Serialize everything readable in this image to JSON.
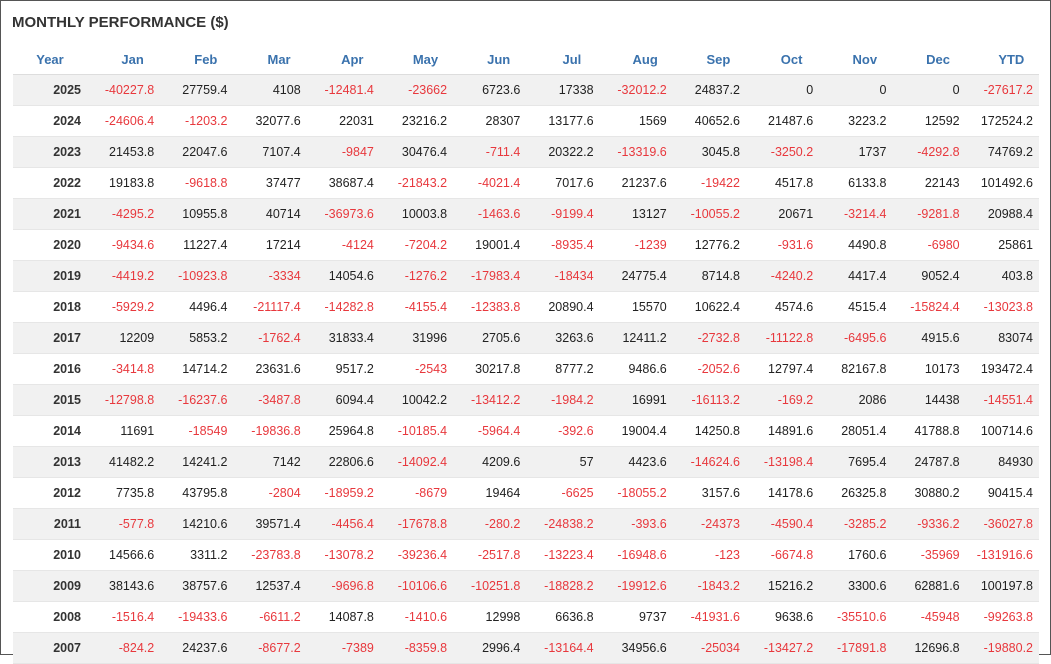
{
  "title": "MONTHLY PERFORMANCE ($)",
  "table": {
    "columns": [
      "Year",
      "Jan",
      "Feb",
      "Mar",
      "Apr",
      "May",
      "Jun",
      "Jul",
      "Aug",
      "Sep",
      "Oct",
      "Nov",
      "Dec",
      "YTD"
    ],
    "rows": [
      [
        2025,
        -40227.8,
        27759.4,
        4108,
        -12481.4,
        -23662,
        6723.6,
        17338,
        -32012.2,
        24837.2,
        0,
        0,
        0,
        -27617.2
      ],
      [
        2024,
        -24606.4,
        -1203.2,
        32077.6,
        22031,
        23216.2,
        28307,
        13177.6,
        1569,
        40652.6,
        21487.6,
        3223.2,
        12592,
        172524.2
      ],
      [
        2023,
        21453.8,
        22047.6,
        7107.4,
        -9847,
        30476.4,
        -711.4,
        20322.2,
        -13319.6,
        3045.8,
        -3250.2,
        1737,
        -4292.8,
        74769.2
      ],
      [
        2022,
        19183.8,
        -9618.8,
        37477,
        38687.4,
        -21843.2,
        -4021.4,
        7017.6,
        21237.6,
        -19422,
        4517.8,
        6133.8,
        22143,
        101492.6
      ],
      [
        2021,
        -4295.2,
        10955.8,
        40714,
        -36973.6,
        10003.8,
        -1463.6,
        -9199.4,
        13127,
        -10055.2,
        20671,
        -3214.4,
        -9281.8,
        20988.4
      ],
      [
        2020,
        -9434.6,
        11227.4,
        17214,
        -4124,
        -7204.2,
        19001.4,
        -8935.4,
        -1239,
        12776.2,
        -931.6,
        4490.8,
        -6980,
        25861
      ],
      [
        2019,
        -4419.2,
        -10923.8,
        -3334,
        14054.6,
        -1276.2,
        -17983.4,
        -18434,
        24775.4,
        8714.8,
        -4240.2,
        4417.4,
        9052.4,
        403.8
      ],
      [
        2018,
        -5929.2,
        4496.4,
        -21117.4,
        -14282.8,
        -4155.4,
        -12383.8,
        20890.4,
        15570,
        10622.4,
        4574.6,
        4515.4,
        -15824.4,
        -13023.8
      ],
      [
        2017,
        12209,
        5853.2,
        -1762.4,
        31833.4,
        31996,
        2705.6,
        3263.6,
        12411.2,
        -2732.8,
        -11122.8,
        -6495.6,
        4915.6,
        83074
      ],
      [
        2016,
        -3414.8,
        14714.2,
        23631.6,
        9517.2,
        -2543,
        30217.8,
        8777.2,
        9486.6,
        -2052.6,
        12797.4,
        82167.8,
        10173,
        193472.4
      ],
      [
        2015,
        -12798.8,
        -16237.6,
        -3487.8,
        6094.4,
        10042.2,
        -13412.2,
        -1984.2,
        16991,
        -16113.2,
        -169.2,
        2086,
        14438,
        -14551.4
      ],
      [
        2014,
        11691,
        -18549,
        -19836.8,
        25964.8,
        -10185.4,
        -5964.4,
        -392.6,
        19004.4,
        14250.8,
        14891.6,
        28051.4,
        41788.8,
        100714.6
      ],
      [
        2013,
        41482.2,
        14241.2,
        7142,
        22806.6,
        -14092.4,
        4209.6,
        57,
        4423.6,
        -14624.6,
        -13198.4,
        7695.4,
        24787.8,
        84930
      ],
      [
        2012,
        7735.8,
        43795.8,
        -2804,
        -18959.2,
        -8679,
        19464,
        -6625,
        -18055.2,
        3157.6,
        14178.6,
        26325.8,
        30880.2,
        90415.4
      ],
      [
        2011,
        -577.8,
        14210.6,
        39571.4,
        -4456.4,
        -17678.8,
        -280.2,
        -24838.2,
        -393.6,
        -24373,
        -4590.4,
        -3285.2,
        -9336.2,
        -36027.8
      ],
      [
        2010,
        14566.6,
        3311.2,
        -23783.8,
        -13078.2,
        -39236.4,
        -2517.8,
        -13223.4,
        -16948.6,
        -123,
        -6674.8,
        1760.6,
        -35969,
        -131916.6
      ],
      [
        2009,
        38143.6,
        38757.6,
        12537.4,
        -9696.8,
        -10106.6,
        -10251.8,
        -18828.2,
        -19912.6,
        -1843.2,
        15216.2,
        3300.6,
        62881.6,
        100197.8
      ],
      [
        2008,
        -1516.4,
        -19433.6,
        -6611.2,
        14087.8,
        -1410.6,
        12998,
        6636.8,
        9737,
        -41931.6,
        9638.6,
        -35510.6,
        -45948,
        -99263.8
      ],
      [
        2007,
        -824.2,
        24237.6,
        -8677.2,
        -7389,
        -8359.8,
        2996.4,
        -13164.4,
        34956.6,
        -25034,
        -13427.2,
        -17891.8,
        12696.8,
        -19880.2
      ]
    ]
  }
}
